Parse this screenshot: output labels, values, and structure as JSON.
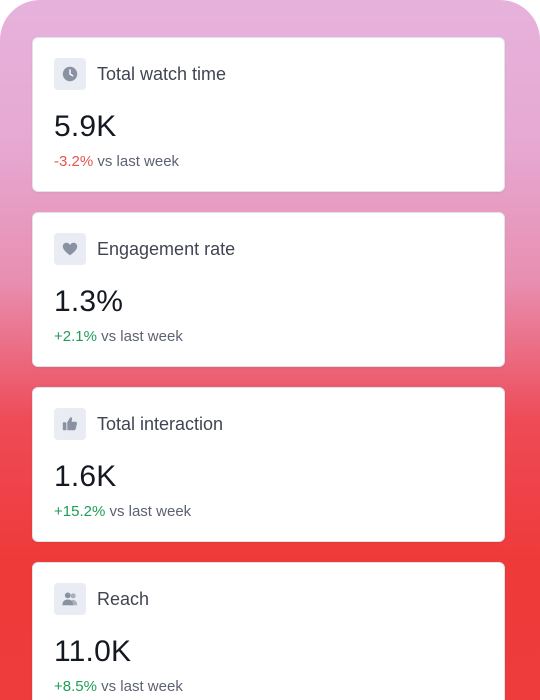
{
  "metrics": [
    {
      "title": "Total watch time",
      "value": "5.9K",
      "delta": "-3.2%",
      "delta_suffix": " vs last week",
      "trend": "down",
      "icon": "clock-icon"
    },
    {
      "title": "Engagement rate",
      "value": "1.3%",
      "delta": "+2.1%",
      "delta_suffix": " vs last week",
      "trend": "up",
      "icon": "heart-icon"
    },
    {
      "title": "Total interaction",
      "value": "1.6K",
      "delta": "+15.2%",
      "delta_suffix": " vs last week",
      "trend": "up",
      "icon": "thumbs-up-icon"
    },
    {
      "title": "Reach",
      "value": "11.0K",
      "delta": "+8.5%",
      "delta_suffix": " vs last week",
      "trend": "up",
      "icon": "users-icon"
    }
  ],
  "colors": {
    "positive": "#1f9d57",
    "negative": "#e4554c",
    "icon": "#8a91a3"
  }
}
